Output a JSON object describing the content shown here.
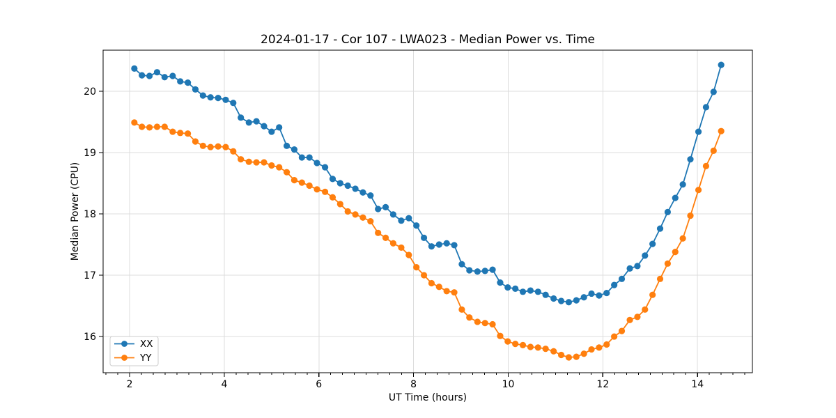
{
  "figure": {
    "background": "#ffffff"
  },
  "colors": {
    "series_xx": "#1f77b4",
    "series_yy": "#ff7f0e",
    "grid": "#dcdcdc",
    "spine": "#000000",
    "text": "#000000",
    "legend_border": "#cccccc",
    "legend_background": "#ffffff"
  },
  "legend": {
    "items": [
      {
        "label": "XX",
        "color": "#1f77b4"
      },
      {
        "label": "YY",
        "color": "#ff7f0e"
      }
    ]
  },
  "chart_data": {
    "type": "line",
    "title": "2024-01-17 - Cor 107 - LWA023 - Median Power vs. Time",
    "xlabel": "UT Time (hours)",
    "ylabel": "Median Power (CPU)",
    "xlim": [
      1.44,
      15.16
    ],
    "ylim": [
      15.41,
      20.67
    ],
    "x_ticks": [
      2,
      4,
      6,
      8,
      10,
      12,
      14
    ],
    "y_ticks": [
      16,
      17,
      18,
      19,
      20
    ],
    "x_minor_step": 0.25,
    "grid": true,
    "legend_position": "lower-left",
    "marker": "circle",
    "x": [
      2.1,
      2.26,
      2.42,
      2.58,
      2.74,
      2.91,
      3.07,
      3.23,
      3.39,
      3.55,
      3.71,
      3.87,
      4.03,
      4.19,
      4.35,
      4.52,
      4.68,
      4.84,
      5.0,
      5.16,
      5.32,
      5.48,
      5.64,
      5.8,
      5.96,
      6.13,
      6.29,
      6.45,
      6.61,
      6.77,
      6.93,
      7.09,
      7.25,
      7.41,
      7.57,
      7.74,
      7.9,
      8.06,
      8.22,
      8.38,
      8.54,
      8.7,
      8.86,
      9.02,
      9.18,
      9.35,
      9.51,
      9.67,
      9.83,
      9.99,
      10.15,
      10.31,
      10.47,
      10.63,
      10.79,
      10.96,
      11.12,
      11.28,
      11.44,
      11.6,
      11.76,
      11.92,
      12.08,
      12.24,
      12.4,
      12.57,
      12.73,
      12.89,
      13.05,
      13.21,
      13.37,
      13.53,
      13.69,
      13.85,
      14.02,
      14.18,
      14.34,
      14.5
    ],
    "series": [
      {
        "name": "XX",
        "color": "#1f77b4",
        "values": [
          20.37,
          20.26,
          20.25,
          20.31,
          20.23,
          20.25,
          20.16,
          20.14,
          20.03,
          19.93,
          19.9,
          19.89,
          19.86,
          19.81,
          19.57,
          19.49,
          19.51,
          19.43,
          19.34,
          19.41,
          19.11,
          19.05,
          18.92,
          18.92,
          18.83,
          18.76,
          18.57,
          18.5,
          18.46,
          18.41,
          18.35,
          18.3,
          18.08,
          18.11,
          17.99,
          17.89,
          17.93,
          17.81,
          17.61,
          17.47,
          17.5,
          17.52,
          17.49,
          17.18,
          17.08,
          17.06,
          17.07,
          17.09,
          16.88,
          16.8,
          16.78,
          16.73,
          16.75,
          16.73,
          16.68,
          16.62,
          16.58,
          16.56,
          16.59,
          16.64,
          16.7,
          16.67,
          16.71,
          16.84,
          16.94,
          17.11,
          17.15,
          17.32,
          17.51,
          17.76,
          18.03,
          18.26,
          18.48,
          18.89,
          19.34,
          19.74,
          19.99,
          20.43
        ]
      },
      {
        "name": "YY",
        "color": "#ff7f0e",
        "values": [
          19.49,
          19.42,
          19.41,
          19.42,
          19.42,
          19.34,
          19.32,
          19.31,
          19.18,
          19.11,
          19.09,
          19.1,
          19.09,
          19.02,
          18.89,
          18.85,
          18.84,
          18.84,
          18.79,
          18.76,
          18.68,
          18.55,
          18.51,
          18.46,
          18.4,
          18.36,
          18.27,
          18.16,
          18.04,
          17.99,
          17.94,
          17.88,
          17.69,
          17.61,
          17.52,
          17.45,
          17.33,
          17.13,
          17.0,
          16.87,
          16.81,
          16.74,
          16.72,
          16.44,
          16.31,
          16.24,
          16.22,
          16.2,
          16.01,
          15.92,
          15.88,
          15.86,
          15.83,
          15.82,
          15.8,
          15.76,
          15.7,
          15.66,
          15.67,
          15.72,
          15.79,
          15.82,
          15.87,
          16.0,
          16.09,
          16.27,
          16.32,
          16.44,
          16.68,
          16.94,
          17.19,
          17.38,
          17.6,
          17.97,
          18.39,
          18.78,
          19.03,
          19.35
        ]
      }
    ]
  }
}
